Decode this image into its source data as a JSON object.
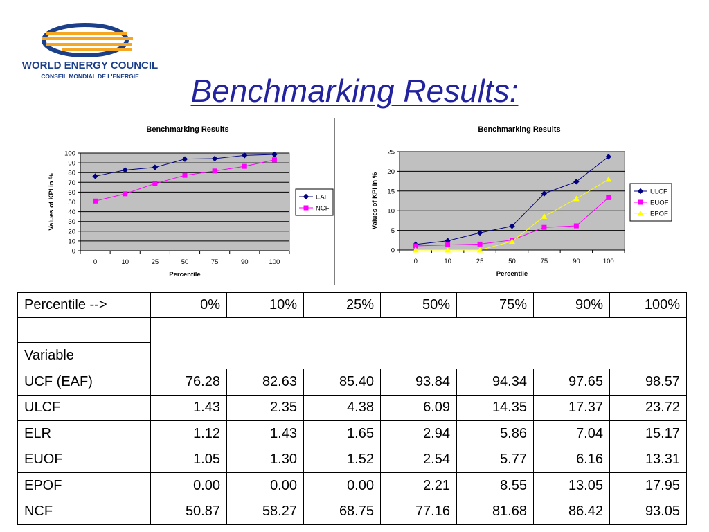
{
  "logo": {
    "name": "WORLD ENERGY COUNCIL",
    "subtitle": "CONSEIL MONDIAL DE L'ENERGIE",
    "colors": {
      "blue": "#1c3f8a",
      "orange": "#f5a623"
    }
  },
  "page_title": "Benchmarking Results:",
  "chart_data": [
    {
      "type": "line",
      "title": "Benchmarking Results",
      "xlabel": "Percentile",
      "ylabel": "Values of KPI in %",
      "categories": [
        "0",
        "10",
        "25",
        "50",
        "75",
        "90",
        "100"
      ],
      "ylim": [
        0,
        100
      ],
      "yticks": [
        "0",
        "10",
        "20",
        "30",
        "40",
        "50",
        "60",
        "70",
        "80",
        "90",
        "100"
      ],
      "grid": true,
      "legend": "right",
      "series": [
        {
          "name": "EAF",
          "values": [
            76.28,
            82.63,
            85.4,
            93.84,
            94.34,
            97.65,
            98.57
          ],
          "color": "#000080",
          "marker": "diamond"
        },
        {
          "name": "NCF",
          "values": [
            50.87,
            58.27,
            68.75,
            77.16,
            81.68,
            86.42,
            93.05
          ],
          "color": "#ff00ff",
          "marker": "square"
        }
      ]
    },
    {
      "type": "line",
      "title": "Benchmarking Results",
      "xlabel": "Percentile",
      "ylabel": "Values of KPI in %",
      "categories": [
        "0",
        "10",
        "25",
        "50",
        "75",
        "90",
        "100"
      ],
      "ylim": [
        0,
        25
      ],
      "yticks": [
        "0",
        "5",
        "10",
        "15",
        "20",
        "25"
      ],
      "grid": true,
      "legend": "right",
      "series": [
        {
          "name": "ULCF",
          "values": [
            1.43,
            2.35,
            4.38,
            6.09,
            14.35,
            17.37,
            23.72
          ],
          "color": "#000080",
          "marker": "diamond"
        },
        {
          "name": "EUOF",
          "values": [
            1.05,
            1.3,
            1.52,
            2.54,
            5.77,
            6.16,
            13.31
          ],
          "color": "#ff00ff",
          "marker": "square"
        },
        {
          "name": "EPOF",
          "values": [
            0.0,
            0.0,
            0.0,
            2.21,
            8.55,
            13.05,
            17.95
          ],
          "color": "#ffff00",
          "marker": "triangle"
        }
      ]
    }
  ],
  "table": {
    "header_label": "Percentile -->",
    "percentiles": [
      "0%",
      "10%",
      "25%",
      "50%",
      "75%",
      "90%",
      "100%"
    ],
    "variable_label": "Variable",
    "rows": [
      {
        "name": "UCF (EAF)",
        "values": [
          "76.28",
          "82.63",
          "85.40",
          "93.84",
          "94.34",
          "97.65",
          "98.57"
        ]
      },
      {
        "name": "ULCF",
        "values": [
          "1.43",
          "2.35",
          "4.38",
          "6.09",
          "14.35",
          "17.37",
          "23.72"
        ]
      },
      {
        "name": "ELR",
        "values": [
          "1.12",
          "1.43",
          "1.65",
          "2.94",
          "5.86",
          "7.04",
          "15.17"
        ]
      },
      {
        "name": "EUOF",
        "values": [
          "1.05",
          "1.30",
          "1.52",
          "2.54",
          "5.77",
          "6.16",
          "13.31"
        ]
      },
      {
        "name": "EPOF",
        "values": [
          "0.00",
          "0.00",
          "0.00",
          "2.21",
          "8.55",
          "13.05",
          "17.95"
        ]
      },
      {
        "name": "NCF",
        "values": [
          "50.87",
          "58.27",
          "68.75",
          "77.16",
          "81.68",
          "86.42",
          "93.05"
        ]
      }
    ]
  }
}
